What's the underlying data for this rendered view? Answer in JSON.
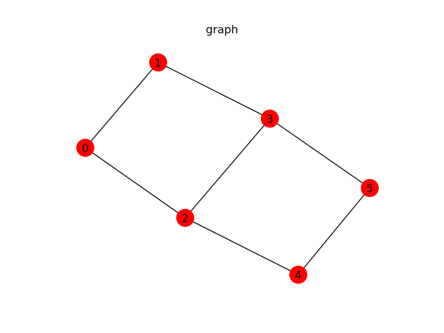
{
  "title": "graph",
  "node_color": "#ff0000",
  "edge_color": "#000000",
  "nodes": [
    {
      "id": "0",
      "label": "0"
    },
    {
      "id": "1",
      "label": "1"
    },
    {
      "id": "2",
      "label": "2"
    },
    {
      "id": "3",
      "label": "3"
    },
    {
      "id": "4",
      "label": "4"
    },
    {
      "id": "5",
      "label": "5"
    }
  ],
  "edges": [
    [
      "0",
      "1"
    ],
    [
      "0",
      "2"
    ],
    [
      "1",
      "3"
    ],
    [
      "2",
      "3"
    ],
    [
      "2",
      "4"
    ],
    [
      "3",
      "5"
    ],
    [
      "4",
      "5"
    ]
  ]
}
